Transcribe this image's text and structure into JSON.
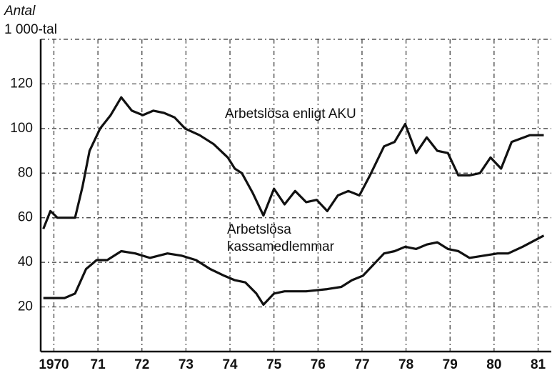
{
  "chart_data": {
    "type": "line",
    "y_label_line1": "Antal",
    "y_label_line2": "1 000-tal",
    "xlim": [
      1969.7,
      1981.3
    ],
    "xticks": [
      {
        "value": 1970,
        "label": "1970"
      },
      {
        "value": 1971,
        "label": "71"
      },
      {
        "value": 1972,
        "label": "72"
      },
      {
        "value": 1973,
        "label": "73"
      },
      {
        "value": 1974,
        "label": "74"
      },
      {
        "value": 1975,
        "label": "75"
      },
      {
        "value": 1976,
        "label": "76"
      },
      {
        "value": 1977,
        "label": "77"
      },
      {
        "value": 1978,
        "label": "78"
      },
      {
        "value": 1979,
        "label": "79"
      },
      {
        "value": 1980,
        "label": "80"
      },
      {
        "value": 1981,
        "label": "81"
      }
    ],
    "ylim": [
      0,
      140
    ],
    "yticks": [
      20,
      40,
      60,
      80,
      100,
      120
    ],
    "grid": true,
    "series": [
      {
        "name": "Arbetslösa enligt AKU",
        "color": "#111111",
        "x": [
          1969.76,
          1969.92,
          1970.08,
          1970.48,
          1970.65,
          1970.81,
          1971.05,
          1971.29,
          1971.53,
          1971.77,
          1972.02,
          1972.26,
          1972.5,
          1972.74,
          1972.98,
          1973.31,
          1973.63,
          1973.95,
          1974.11,
          1974.27,
          1974.52,
          1974.76,
          1975.0,
          1975.24,
          1975.48,
          1975.73,
          1975.97,
          1976.21,
          1976.45,
          1976.69,
          1976.94,
          1977.18,
          1977.5,
          1977.74,
          1977.98,
          1978.23,
          1978.47,
          1978.71,
          1978.95,
          1979.19,
          1979.44,
          1979.68,
          1979.92,
          1980.16,
          1980.4,
          1980.81,
          1981.13
        ],
        "values": [
          55,
          63,
          60,
          60,
          74,
          90,
          100,
          106,
          114,
          108,
          106,
          108,
          107,
          105,
          100,
          97,
          93,
          87,
          82,
          80,
          71,
          61,
          73,
          66,
          72,
          67,
          68,
          63,
          70,
          72,
          70,
          79,
          92,
          94,
          102,
          89,
          96,
          90,
          89,
          79,
          79,
          80,
          87,
          82,
          94,
          97,
          97
        ]
      },
      {
        "name": "Arbetslösa kassamedlemmar",
        "color": "#111111",
        "x": [
          1969.76,
          1970.24,
          1970.48,
          1970.73,
          1970.97,
          1971.21,
          1971.53,
          1971.85,
          1972.18,
          1972.58,
          1972.9,
          1973.23,
          1973.55,
          1973.87,
          1974.11,
          1974.35,
          1974.6,
          1974.76,
          1975.0,
          1975.24,
          1975.73,
          1976.21,
          1976.53,
          1976.77,
          1977.02,
          1977.26,
          1977.5,
          1977.74,
          1977.98,
          1978.23,
          1978.47,
          1978.71,
          1978.95,
          1979.19,
          1979.44,
          1979.76,
          1980.08,
          1980.32,
          1980.65,
          1981.13
        ],
        "values": [
          24,
          24,
          26,
          37,
          41,
          41,
          45,
          44,
          42,
          44,
          43,
          41,
          37,
          34,
          32,
          31,
          26,
          21,
          26,
          27,
          27,
          28,
          29,
          32,
          34,
          39,
          44,
          45,
          47,
          46,
          48,
          49,
          46,
          45,
          42,
          43,
          44,
          44,
          47,
          52
        ]
      }
    ],
    "annotation_aku": "Arbetslösa enligt AKU",
    "annotation_kassa_line1": "Arbetslösa",
    "annotation_kassa_line2": "kassamedlemmar"
  }
}
